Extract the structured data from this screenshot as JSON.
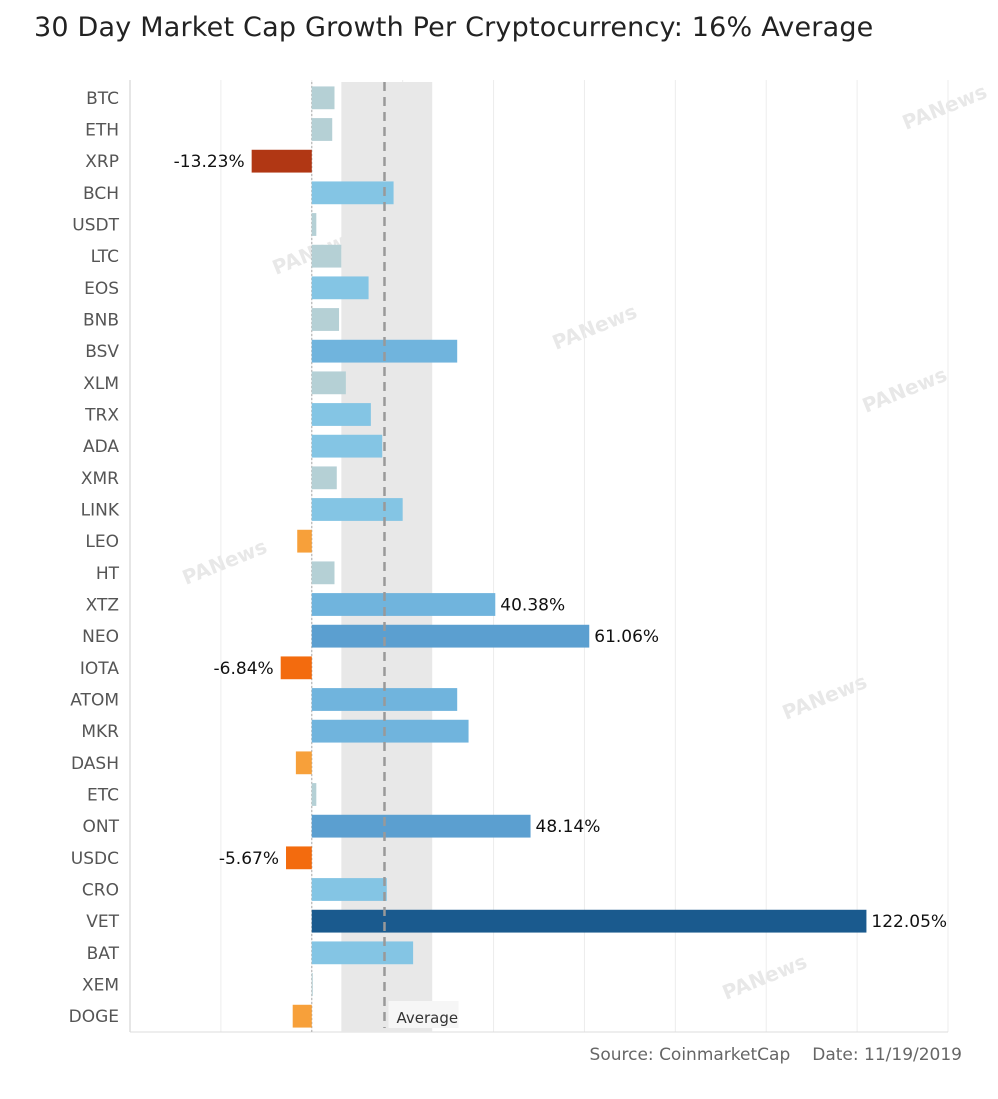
{
  "title": "30 Day Market Cap Growth Per Cryptocurrency: 16% Average",
  "source": "Source: CoinmarketCap",
  "date": "Date: 11/19/2019",
  "watermark": "PANews",
  "average_label": "Average",
  "chart_data": {
    "type": "bar",
    "orientation": "horizontal",
    "categories": [
      "BTC",
      "ETH",
      "XRP",
      "BCH",
      "USDT",
      "LTC",
      "EOS",
      "BNB",
      "BSV",
      "XLM",
      "TRX",
      "ADA",
      "XMR",
      "LINK",
      "LEO",
      "HT",
      "XTZ",
      "NEO",
      "IOTA",
      "ATOM",
      "MKR",
      "DASH",
      "ETC",
      "ONT",
      "USDC",
      "CRO",
      "VET",
      "BAT",
      "XEM",
      "DOGE"
    ],
    "values": [
      5,
      4.5,
      -13.23,
      18,
      1,
      6.5,
      12.5,
      6,
      32,
      7.5,
      13,
      15.5,
      5.5,
      20,
      -3.2,
      5,
      40.38,
      61.06,
      -6.84,
      32,
      34.5,
      -3.5,
      1,
      48.14,
      -5.67,
      16.5,
      122.05,
      22.3,
      0.2,
      -4.2
    ],
    "data_labels": {
      "XRP": "-13.23%",
      "XTZ": "40.38%",
      "NEO": "61.06%",
      "IOTA": "-6.84%",
      "ONT": "48.14%",
      "USDC": "-5.67%",
      "VET": "122.05%"
    },
    "average": 16,
    "average_band": [
      6.5,
      26.5
    ],
    "xlim": [
      -40,
      140
    ],
    "grid_step": 20,
    "grid": true,
    "colors": {
      "small_positive": "#b5d0d5",
      "medium_positive": "#84c5e4",
      "large_positive": "#5b9fd0",
      "top_positive": "#1a5a8e",
      "small_negative": "#f7a03a",
      "medium_negative": "#f36b0e",
      "large_negative": "#b13714",
      "band": "#e8e8e8",
      "average_line": "#999999"
    }
  }
}
